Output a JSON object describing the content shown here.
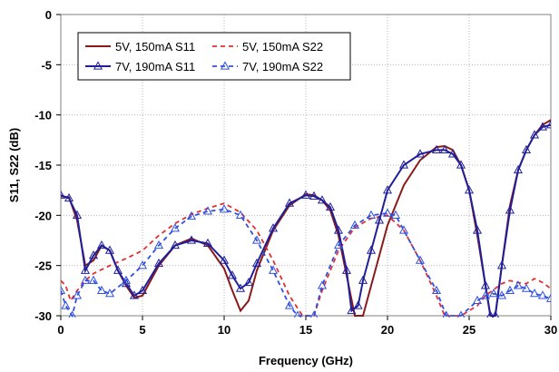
{
  "chart_data": {
    "type": "line",
    "xlabel": "Frequency (GHz)",
    "ylabel": "S11, S22 (dB)",
    "xlim": [
      0,
      30
    ],
    "ylim": [
      -30,
      0
    ],
    "x_ticks": [
      0,
      5,
      10,
      15,
      20,
      25,
      30
    ],
    "y_ticks": [
      0,
      -5,
      -10,
      -15,
      -20,
      -25,
      -30
    ],
    "grid": "major, dotted",
    "legend_position": "top-left, inside plot, two columns",
    "series": [
      {
        "name": "5V, 150mA S11",
        "color": "#8b1a1a",
        "style": "solid",
        "marker": "none",
        "x": [
          0,
          0.5,
          1,
          1.5,
          2,
          2.5,
          3,
          3.5,
          4,
          4.5,
          5,
          6,
          7,
          8,
          9,
          10,
          10.5,
          11,
          11.5,
          12,
          13,
          14,
          15,
          15.5,
          16,
          16.5,
          17,
          17.5,
          18,
          18.5,
          19,
          19.5,
          20,
          21,
          22,
          23,
          23.5,
          24,
          24.5,
          25,
          25.5,
          26,
          26.3,
          26.6,
          27,
          27.5,
          28,
          28.5,
          29,
          29.5,
          30
        ],
        "values": [
          -18.1,
          -18.2,
          -20.5,
          -25.0,
          -24.5,
          -23.0,
          -23.5,
          -25.5,
          -27.0,
          -28.2,
          -28.0,
          -25.0,
          -23.0,
          -22.3,
          -23.0,
          -25.3,
          -27.5,
          -29.5,
          -28.5,
          -25.5,
          -21.5,
          -19.0,
          -17.9,
          -18.0,
          -18.5,
          -19.5,
          -22.0,
          -26.0,
          -30.0,
          -30.0,
          -27.0,
          -24.0,
          -21.0,
          -17.0,
          -14.5,
          -13.2,
          -13.1,
          -13.5,
          -15.0,
          -17.5,
          -22.0,
          -27.0,
          -30.0,
          -30.0,
          -25.0,
          -19.0,
          -15.5,
          -13.5,
          -12.0,
          -11.0,
          -10.5
        ]
      },
      {
        "name": "5V, 150mA S22",
        "color": "#e03030",
        "style": "dashed",
        "marker": "none",
        "x": [
          0,
          0.3,
          0.6,
          1,
          1.5,
          2,
          3,
          4,
          5,
          6,
          7,
          8,
          9,
          10,
          11,
          12,
          13,
          14,
          14.8,
          15.5,
          16,
          17,
          18,
          19,
          20,
          21,
          22,
          23,
          23.5,
          24.5,
          25.5,
          26,
          26.5,
          27,
          27.5,
          28,
          28.5,
          29,
          29.5,
          30
        ],
        "values": [
          -26.5,
          -27.0,
          -28.5,
          -27.5,
          -26.5,
          -25.8,
          -25.0,
          -24.3,
          -23.5,
          -22.0,
          -20.8,
          -19.9,
          -19.3,
          -18.8,
          -19.7,
          -21.5,
          -24.5,
          -28.0,
          -30.0,
          -30.0,
          -27.5,
          -23.5,
          -21.2,
          -20.3,
          -20.0,
          -21.5,
          -24.5,
          -28.0,
          -30.0,
          -30.0,
          -29.0,
          -28.0,
          -27.4,
          -26.8,
          -26.5,
          -26.7,
          -26.8,
          -26.3,
          -26.7,
          -27.3
        ]
      },
      {
        "name": "7V, 190mA S11",
        "color": "#1f1f9a",
        "style": "solid",
        "marker": "triangle",
        "x": [
          0,
          0.5,
          1,
          1.5,
          2,
          2.5,
          3,
          3.5,
          4,
          4.5,
          5,
          6,
          7,
          8,
          9,
          10,
          10.5,
          11,
          11.5,
          12,
          13,
          14,
          15,
          15.5,
          16,
          16.5,
          17,
          17.5,
          17.8,
          18.2,
          18.5,
          19,
          19.5,
          20,
          21,
          22,
          23,
          23.5,
          24,
          24.5,
          25,
          25.5,
          26,
          26.3,
          26.6,
          27,
          27.5,
          28,
          28.5,
          29,
          29.5,
          30
        ],
        "values": [
          -18.0,
          -18.3,
          -20.0,
          -25.5,
          -24.0,
          -23.0,
          -23.5,
          -25.5,
          -26.8,
          -28.0,
          -27.5,
          -24.8,
          -23.0,
          -22.5,
          -22.8,
          -24.5,
          -26.0,
          -27.3,
          -26.7,
          -24.8,
          -21.3,
          -18.8,
          -18.0,
          -18.1,
          -18.5,
          -19.2,
          -21.5,
          -25.5,
          -29.5,
          -29.0,
          -26.5,
          -23.5,
          -20.5,
          -17.5,
          -15.0,
          -13.9,
          -13.5,
          -13.5,
          -13.9,
          -15.0,
          -17.5,
          -21.5,
          -27.0,
          -30.0,
          -30.0,
          -25.0,
          -19.5,
          -15.5,
          -13.5,
          -12.0,
          -11.2,
          -11.0
        ]
      },
      {
        "name": "7V, 190mA S22",
        "color": "#3050e0",
        "style": "dashed",
        "marker": "triangle",
        "x": [
          0,
          0.3,
          0.7,
          1,
          1.5,
          2,
          2.5,
          3,
          4,
          5,
          6,
          7,
          8,
          9,
          10,
          11,
          12,
          13,
          14,
          14.5,
          15.5,
          16,
          17,
          18,
          19,
          20,
          20.5,
          21,
          22,
          23,
          23.6,
          24.5,
          25.5,
          26,
          26.5,
          27,
          27.5,
          28,
          28.5,
          29,
          29.5,
          30
        ],
        "values": [
          -27.5,
          -29.0,
          -30.0,
          -28.0,
          -26.5,
          -26.5,
          -27.5,
          -27.8,
          -26.5,
          -25.0,
          -23.0,
          -21.3,
          -20.1,
          -19.6,
          -19.4,
          -20.0,
          -22.5,
          -25.5,
          -29.0,
          -30.0,
          -30.0,
          -27.0,
          -23.0,
          -21.0,
          -20.0,
          -19.8,
          -20.0,
          -21.5,
          -24.5,
          -27.5,
          -30.0,
          -30.0,
          -28.5,
          -28.0,
          -27.8,
          -28.0,
          -27.5,
          -27.0,
          -27.3,
          -27.8,
          -28.0,
          -28.3
        ]
      }
    ]
  }
}
